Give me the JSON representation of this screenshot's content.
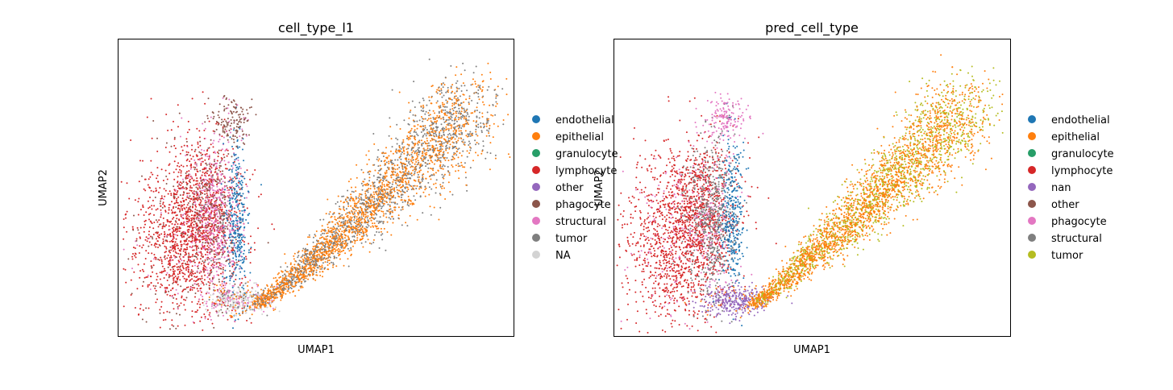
{
  "chart_data": [
    {
      "type": "scatter",
      "title": "cell_type_l1",
      "xlabel": "UMAP1",
      "ylabel": "UMAP2",
      "grid": false,
      "legend_position": "right",
      "legend": [
        {
          "name": "endothelial",
          "color": "#1f77b4"
        },
        {
          "name": "epithelial",
          "color": "#ff7f0e"
        },
        {
          "name": "granulocyte",
          "color": "#279e68"
        },
        {
          "name": "lymphocyte",
          "color": "#d62728"
        },
        {
          "name": "other",
          "color": "#9467bd"
        },
        {
          "name": "phagocyte",
          "color": "#8c564b"
        },
        {
          "name": "structural",
          "color": "#e377c2"
        },
        {
          "name": "tumor",
          "color": "#7f7f7f"
        },
        {
          "name": "NA",
          "color": "#d3d3d3"
        }
      ]
    },
    {
      "type": "scatter",
      "title": "pred_cell_type",
      "xlabel": "UMAP1",
      "ylabel": "UMAP2",
      "grid": false,
      "legend_position": "right",
      "legend": [
        {
          "name": "endothelial",
          "color": "#1f77b4"
        },
        {
          "name": "epithelial",
          "color": "#ff7f0e"
        },
        {
          "name": "granulocyte",
          "color": "#279e68"
        },
        {
          "name": "lymphocyte",
          "color": "#d62728"
        },
        {
          "name": "nan",
          "color": "#9467bd"
        },
        {
          "name": "other",
          "color": "#8c564b"
        },
        {
          "name": "phagocyte",
          "color": "#e377c2"
        },
        {
          "name": "structural",
          "color": "#7f7f7f"
        },
        {
          "name": "tumor",
          "color": "#b5bd21"
        }
      ]
    }
  ]
}
